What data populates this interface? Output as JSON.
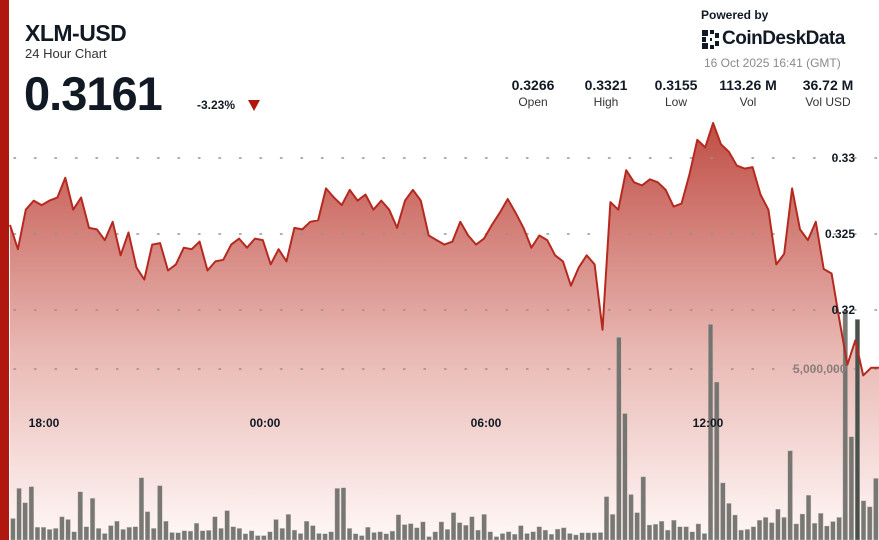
{
  "header": {
    "symbol": "XLM-USD",
    "subtitle": "24 Hour Chart",
    "price": "0.3161",
    "change": "-3.23%",
    "change_direction": "down",
    "powered_by": "Powered by",
    "brand": "CoinDeskData",
    "timestamp": "16 Oct 2025 16:41 (GMT)"
  },
  "stats": [
    {
      "value": "0.3266",
      "label": "Open"
    },
    {
      "value": "0.3321",
      "label": "High"
    },
    {
      "value": "0.3155",
      "label": "Low"
    },
    {
      "value": "113.26 M",
      "label": "Vol"
    },
    {
      "value": "36.72 M",
      "label": "Vol USD"
    }
  ],
  "colors": {
    "accent": "#b0170e",
    "line": "#b52a20",
    "fill_top": "#bf4d44",
    "volume": "#6d6d68",
    "volume_highlight": "#4a504b"
  },
  "chart_data": {
    "type": "area",
    "price_axis": {
      "ticks": [
        0.32,
        0.325,
        0.33
      ],
      "tick_labels": [
        "0.32",
        "0.325",
        "0.33"
      ],
      "range": [
        0.3098,
        0.3355
      ],
      "grid": "dotted"
    },
    "volume_axis": {
      "ticks": [
        5000000
      ],
      "tick_labels": [
        "5,000,000"
      ]
    },
    "x_tick_labels": [
      "18:00",
      "00:00",
      "06:00",
      "12:00"
    ],
    "price": [
      0.3256,
      0.324,
      0.3266,
      0.3272,
      0.3269,
      0.3272,
      0.3274,
      0.3287,
      0.3266,
      0.3274,
      0.3254,
      0.3253,
      0.3246,
      0.3258,
      0.3236,
      0.3251,
      0.3228,
      0.322,
      0.3243,
      0.3244,
      0.3226,
      0.323,
      0.3241,
      0.324,
      0.3245,
      0.3226,
      0.3232,
      0.3233,
      0.3243,
      0.3247,
      0.3241,
      0.3247,
      0.3246,
      0.323,
      0.324,
      0.3232,
      0.3254,
      0.3253,
      0.3258,
      0.3259,
      0.328,
      0.3274,
      0.3269,
      0.3279,
      0.3272,
      0.3276,
      0.3266,
      0.3272,
      0.3266,
      0.3254,
      0.3272,
      0.3279,
      0.3272,
      0.3249,
      0.3246,
      0.3243,
      0.3245,
      0.3258,
      0.3249,
      0.3243,
      0.3247,
      0.3256,
      0.3264,
      0.3273,
      0.3264,
      0.3254,
      0.3241,
      0.3249,
      0.3246,
      0.3236,
      0.3232,
      0.3216,
      0.3228,
      0.3236,
      0.323,
      0.3187,
      0.3271,
      0.3266,
      0.3292,
      0.3284,
      0.3282,
      0.3286,
      0.3284,
      0.3279,
      0.3268,
      0.327,
      0.3289,
      0.3312,
      0.3307,
      0.3323,
      0.3309,
      0.3304,
      0.3295,
      0.3293,
      0.3294,
      0.3276,
      0.3266,
      0.323,
      0.3237,
      0.328,
      0.3253,
      0.3246,
      0.3258,
      0.3227,
      0.3224,
      0.3193,
      0.3164,
      0.318,
      0.3157,
      0.3162,
      0.3162
    ],
    "volume_millions": [
      0.63,
      1.51,
      1.09,
      1.56,
      0.37,
      0.37,
      0.31,
      0.34,
      0.68,
      0.6,
      0.24,
      1.41,
      0.39,
      1.22,
      0.34,
      0.19,
      0.42,
      0.55,
      0.31,
      0.37,
      0.39,
      1.82,
      0.83,
      0.34,
      1.59,
      0.55,
      0.22,
      0.21,
      0.27,
      0.26,
      0.49,
      0.27,
      0.28,
      0.68,
      0.34,
      0.86,
      0.39,
      0.34,
      0.18,
      0.27,
      0.13,
      0.13,
      0.24,
      0.6,
      0.34,
      0.75,
      0.29,
      0.19,
      0.55,
      0.42,
      0.19,
      0.18,
      0.24,
      1.51,
      1.53,
      0.34,
      0.18,
      0.13,
      0.37,
      0.22,
      0.24,
      0.18,
      0.26,
      0.74,
      0.45,
      0.48,
      0.36,
      0.53,
      0.1,
      0.24,
      0.53,
      0.31,
      0.8,
      0.51,
      0.43,
      0.68,
      0.29,
      0.75,
      0.24,
      0.1,
      0.19,
      0.24,
      0.17,
      0.42,
      0.19,
      0.24,
      0.39,
      0.29,
      0.17,
      0.32,
      0.36,
      0.19,
      0.15,
      0.21,
      0.21,
      0.21,
      0.22,
      1.27,
      0.75,
      5.93,
      3.7,
      1.33,
      0.8,
      1.85,
      0.44,
      0.46,
      0.55,
      0.29,
      0.58,
      0.39,
      0.39,
      0.24,
      0.47,
      0.19,
      6.31,
      4.62,
      1.67,
      1.07,
      0.73,
      0.29,
      0.31,
      0.39,
      0.58,
      0.66,
      0.51,
      0.9,
      0.66,
      2.61,
      0.47,
      0.76,
      1.31,
      0.49,
      0.78,
      0.41,
      0.54,
      0.66,
      6.72,
      3.02,
      6.45,
      1.15,
      0.97,
      1.8
    ],
    "highlighted_volume_index": 138
  }
}
